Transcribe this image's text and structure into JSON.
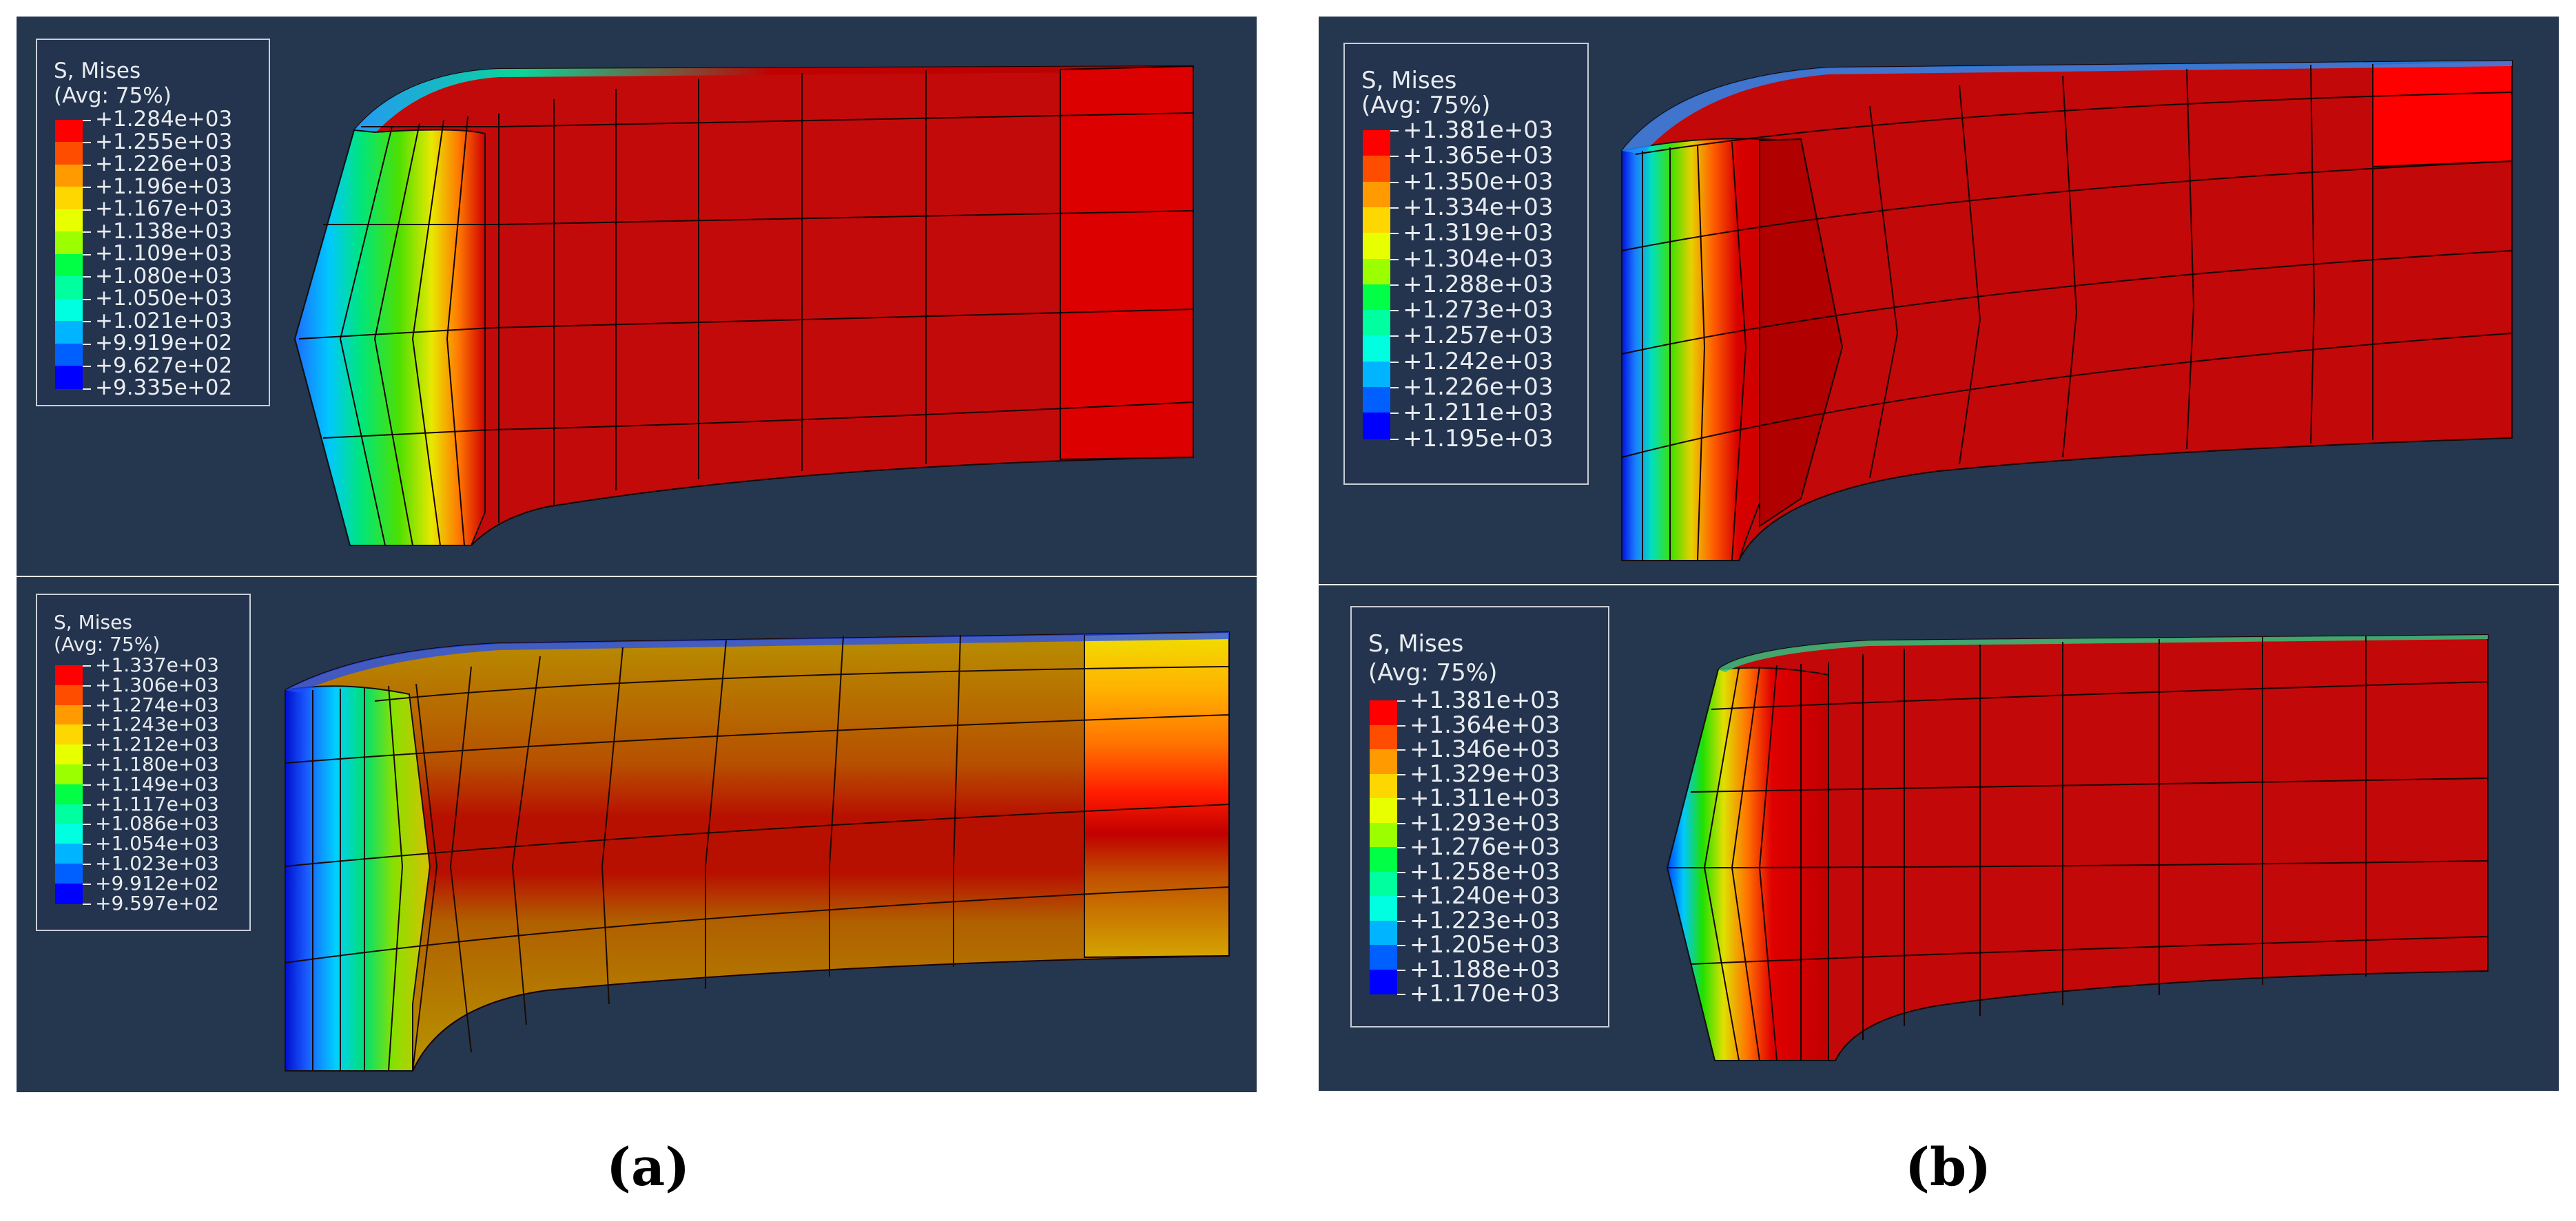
{
  "figure": {
    "caption_a": "(a)",
    "caption_b": "(b)"
  },
  "panels": [
    {
      "id": "a-top",
      "legend": {
        "title": "S, Mises",
        "subtitle": "(Avg: 75%)",
        "values": [
          "+1.284e+03",
          "+1.255e+03",
          "+1.226e+03",
          "+1.196e+03",
          "+1.167e+03",
          "+1.138e+03",
          "+1.109e+03",
          "+1.080e+03",
          "+1.050e+03",
          "+1.021e+03",
          "+9.919e+02",
          "+9.627e+02",
          "+9.335e+02"
        ]
      },
      "body_color": "#c40505"
    },
    {
      "id": "a-bottom",
      "legend": {
        "title": "S, Mises",
        "subtitle": "(Avg: 75%)",
        "values": [
          "+1.337e+03",
          "+1.306e+03",
          "+1.274e+03",
          "+1.243e+03",
          "+1.212e+03",
          "+1.180e+03",
          "+1.149e+03",
          "+1.117e+03",
          "+1.086e+03",
          "+1.054e+03",
          "+1.023e+03",
          "+9.912e+02",
          "+9.597e+02"
        ]
      },
      "body_color": "#b08a00"
    },
    {
      "id": "b-top",
      "legend": {
        "title": "S, Mises",
        "subtitle": "(Avg: 75%)",
        "values": [
          "+1.381e+03",
          "+1.365e+03",
          "+1.350e+03",
          "+1.334e+03",
          "+1.319e+03",
          "+1.304e+03",
          "+1.288e+03",
          "+1.273e+03",
          "+1.257e+03",
          "+1.242e+03",
          "+1.226e+03",
          "+1.211e+03",
          "+1.195e+03"
        ]
      },
      "body_color": "#c40505"
    },
    {
      "id": "b-bottom",
      "legend": {
        "title": "S, Mises",
        "subtitle": "(Avg: 75%)",
        "values": [
          "+1.381e+03",
          "+1.364e+03",
          "+1.346e+03",
          "+1.329e+03",
          "+1.311e+03",
          "+1.293e+03",
          "+1.276e+03",
          "+1.258e+03",
          "+1.240e+03",
          "+1.223e+03",
          "+1.205e+03",
          "+1.188e+03",
          "+1.170e+03"
        ]
      },
      "body_color": "#c40505"
    }
  ],
  "colormap": [
    "#ff0000",
    "#ff4d00",
    "#ff9a00",
    "#ffd700",
    "#e8ff00",
    "#9cff00",
    "#3aff00",
    "#00ff45",
    "#00ff9e",
    "#00ffe0",
    "#00b4ff",
    "#0060ff",
    "#0000ff"
  ],
  "viewport_bg": "#243550"
}
